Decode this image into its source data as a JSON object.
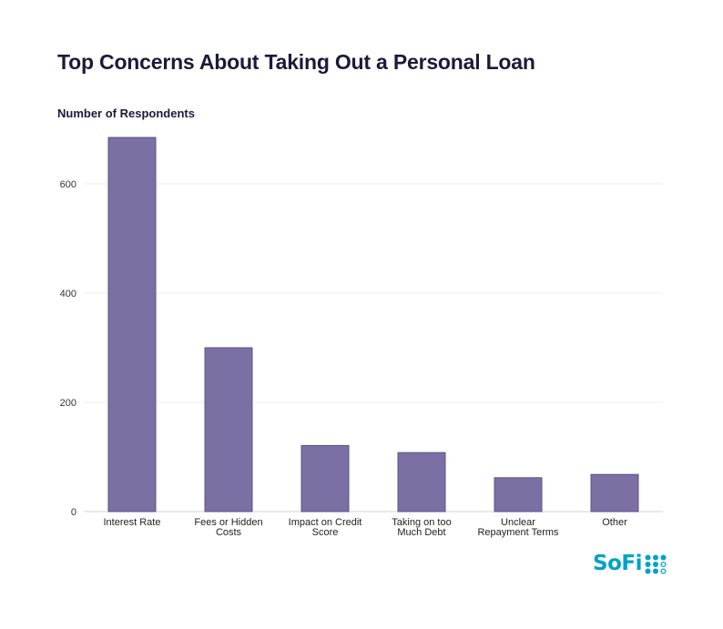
{
  "chart_data": {
    "type": "bar",
    "title": "Top Concerns About Taking Out a Personal Loan",
    "ylabel": "Number of Respondents",
    "xlabel": "",
    "categories": [
      [
        "Interest Rate"
      ],
      [
        "Fees or Hidden",
        "Costs"
      ],
      [
        "Impact on Credit",
        "Score"
      ],
      [
        "Taking on too",
        "Much Debt"
      ],
      [
        "Unclear",
        "Repayment Terms"
      ],
      [
        "Other"
      ]
    ],
    "values": [
      685,
      300,
      121,
      108,
      62,
      68
    ],
    "ylim": [
      0,
      700
    ],
    "yticks": [
      0,
      200,
      400,
      600
    ],
    "grid": true,
    "bar_color": "#7b6fa4",
    "legend": "none"
  },
  "logo": {
    "text": "SoFi",
    "color": "#00a2c7"
  }
}
